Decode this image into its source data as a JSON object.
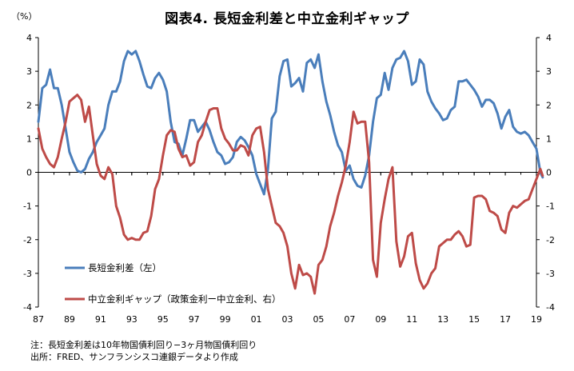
{
  "title": "図表4.  長短金利差と中立金利ギャップ",
  "unit_label": "（%）",
  "notes": [
    "注：長短金利差は10年物国債利回り−3ヶ月物国債利回り",
    "出所：FRED、サンフランシスコ連銀データより作成"
  ],
  "colors": {
    "series1": "#4a7ebb",
    "series2": "#be4b48",
    "axis": "#000000",
    "zero": "#000000"
  },
  "chart_data": {
    "type": "line",
    "title": "図表4.  長短金利差と中立金利ギャップ",
    "xlabel": "",
    "ylabel": "（%）",
    "xlim": [
      1987.0,
      2019.0
    ],
    "ylim": [
      -4,
      4
    ],
    "y_ticks": [
      4,
      3,
      2,
      1,
      0,
      -1,
      -2,
      -3,
      -4
    ],
    "y_ticks_right": [
      4,
      3,
      2,
      1,
      0,
      -1,
      -2,
      -3,
      -4
    ],
    "x_ticks": [
      {
        "x": 1987,
        "label": "87"
      },
      {
        "x": 1989,
        "label": "89"
      },
      {
        "x": 1991,
        "label": "91"
      },
      {
        "x": 1993,
        "label": "93"
      },
      {
        "x": 1995,
        "label": "95"
      },
      {
        "x": 1997,
        "label": "97"
      },
      {
        "x": 1999,
        "label": "99"
      },
      {
        "x": 2001,
        "label": "01"
      },
      {
        "x": 2003,
        "label": "03"
      },
      {
        "x": 2005,
        "label": "05"
      },
      {
        "x": 2007,
        "label": "07"
      },
      {
        "x": 2009,
        "label": "09"
      },
      {
        "x": 2011,
        "label": "11"
      },
      {
        "x": 2013,
        "label": "13"
      },
      {
        "x": 2015,
        "label": "15"
      },
      {
        "x": 2017,
        "label": "17"
      },
      {
        "x": 2019,
        "label": "19"
      }
    ],
    "legend_position": "bottom-left",
    "series": [
      {
        "name": "長短金利差（左）",
        "color": "#4a7ebb",
        "points": [
          [
            1987.0,
            1.5
          ],
          [
            1987.25,
            2.5
          ],
          [
            1987.5,
            2.6
          ],
          [
            1987.75,
            3.05
          ],
          [
            1988.0,
            2.5
          ],
          [
            1988.25,
            2.5
          ],
          [
            1988.5,
            2.0
          ],
          [
            1988.75,
            1.3
          ],
          [
            1989.0,
            0.6
          ],
          [
            1989.25,
            0.3
          ],
          [
            1989.5,
            0.05
          ],
          [
            1989.75,
            0.0
          ],
          [
            1990.0,
            0.1
          ],
          [
            1990.25,
            0.4
          ],
          [
            1990.5,
            0.6
          ],
          [
            1990.75,
            0.9
          ],
          [
            1991.0,
            1.1
          ],
          [
            1991.25,
            1.3
          ],
          [
            1991.5,
            2.0
          ],
          [
            1991.75,
            2.4
          ],
          [
            1992.0,
            2.4
          ],
          [
            1992.25,
            2.7
          ],
          [
            1992.5,
            3.3
          ],
          [
            1992.75,
            3.6
          ],
          [
            1993.0,
            3.5
          ],
          [
            1993.25,
            3.6
          ],
          [
            1993.5,
            3.3
          ],
          [
            1993.75,
            2.9
          ],
          [
            1994.0,
            2.55
          ],
          [
            1994.25,
            2.5
          ],
          [
            1994.5,
            2.8
          ],
          [
            1994.75,
            2.95
          ],
          [
            1995.0,
            2.75
          ],
          [
            1995.25,
            2.4
          ],
          [
            1995.5,
            1.5
          ],
          [
            1995.75,
            0.9
          ],
          [
            1996.0,
            0.85
          ],
          [
            1996.25,
            0.5
          ],
          [
            1996.5,
            1.0
          ],
          [
            1996.75,
            1.55
          ],
          [
            1997.0,
            1.55
          ],
          [
            1997.25,
            1.2
          ],
          [
            1997.5,
            1.35
          ],
          [
            1997.75,
            1.5
          ],
          [
            1998.0,
            1.25
          ],
          [
            1998.25,
            0.9
          ],
          [
            1998.5,
            0.6
          ],
          [
            1998.75,
            0.5
          ],
          [
            1999.0,
            0.25
          ],
          [
            1999.25,
            0.3
          ],
          [
            1999.5,
            0.45
          ],
          [
            1999.75,
            0.9
          ],
          [
            2000.0,
            1.05
          ],
          [
            2000.25,
            0.95
          ],
          [
            2000.5,
            0.75
          ],
          [
            2000.75,
            0.5
          ],
          [
            2001.0,
            -0.05
          ],
          [
            2001.25,
            -0.35
          ],
          [
            2001.5,
            -0.65
          ],
          [
            2001.75,
            0.1
          ],
          [
            2002.0,
            1.6
          ],
          [
            2002.25,
            1.8
          ],
          [
            2002.5,
            2.85
          ],
          [
            2002.75,
            3.3
          ],
          [
            2003.0,
            3.35
          ],
          [
            2003.25,
            2.55
          ],
          [
            2003.5,
            2.65
          ],
          [
            2003.75,
            2.8
          ],
          [
            2004.0,
            2.4
          ],
          [
            2004.25,
            3.25
          ],
          [
            2004.5,
            3.35
          ],
          [
            2004.75,
            3.1
          ],
          [
            2005.0,
            3.5
          ],
          [
            2005.25,
            2.7
          ],
          [
            2005.5,
            2.1
          ],
          [
            2005.75,
            1.7
          ],
          [
            2006.0,
            1.2
          ],
          [
            2006.25,
            0.8
          ],
          [
            2006.5,
            0.6
          ],
          [
            2006.75,
            0.05
          ],
          [
            2007.0,
            0.2
          ],
          [
            2007.25,
            -0.2
          ],
          [
            2007.5,
            -0.4
          ],
          [
            2007.75,
            -0.45
          ],
          [
            2008.0,
            -0.1
          ],
          [
            2008.25,
            0.5
          ],
          [
            2008.5,
            1.5
          ],
          [
            2008.75,
            2.2
          ],
          [
            2009.0,
            2.3
          ],
          [
            2009.25,
            2.95
          ],
          [
            2009.5,
            2.45
          ],
          [
            2009.75,
            3.1
          ],
          [
            2010.0,
            3.35
          ],
          [
            2010.25,
            3.4
          ],
          [
            2010.5,
            3.6
          ],
          [
            2010.75,
            3.3
          ],
          [
            2011.0,
            2.6
          ],
          [
            2011.25,
            2.7
          ],
          [
            2011.5,
            3.35
          ],
          [
            2011.75,
            3.2
          ],
          [
            2012.0,
            2.4
          ],
          [
            2012.25,
            2.1
          ],
          [
            2012.5,
            1.9
          ],
          [
            2012.75,
            1.75
          ],
          [
            2013.0,
            1.55
          ],
          [
            2013.25,
            1.6
          ],
          [
            2013.5,
            1.85
          ],
          [
            2013.75,
            1.95
          ],
          [
            2014.0,
            2.7
          ],
          [
            2014.25,
            2.7
          ],
          [
            2014.5,
            2.75
          ],
          [
            2014.75,
            2.6
          ],
          [
            2015.0,
            2.45
          ],
          [
            2015.25,
            2.25
          ],
          [
            2015.5,
            1.95
          ],
          [
            2015.75,
            2.15
          ],
          [
            2016.0,
            2.15
          ],
          [
            2016.25,
            2.05
          ],
          [
            2016.5,
            1.75
          ],
          [
            2016.75,
            1.3
          ],
          [
            2017.0,
            1.65
          ],
          [
            2017.25,
            1.85
          ],
          [
            2017.5,
            1.35
          ],
          [
            2017.75,
            1.2
          ],
          [
            2018.0,
            1.15
          ],
          [
            2018.25,
            1.2
          ],
          [
            2018.5,
            1.1
          ],
          [
            2018.75,
            0.9
          ],
          [
            2019.0,
            0.7
          ],
          [
            2019.25,
            0.0
          ],
          [
            2019.4,
            -0.15
          ]
        ]
      },
      {
        "name": "中立金利ギャップ（政策金利ー中立金利、右）",
        "color": "#be4b48",
        "points": [
          [
            1987.0,
            1.3
          ],
          [
            1987.25,
            0.7
          ],
          [
            1987.5,
            0.45
          ],
          [
            1987.75,
            0.25
          ],
          [
            1988.0,
            0.15
          ],
          [
            1988.25,
            0.45
          ],
          [
            1988.5,
            1.0
          ],
          [
            1988.75,
            1.5
          ],
          [
            1989.0,
            2.1
          ],
          [
            1989.25,
            2.2
          ],
          [
            1989.5,
            2.3
          ],
          [
            1989.75,
            2.15
          ],
          [
            1990.0,
            1.5
          ],
          [
            1990.25,
            1.95
          ],
          [
            1990.5,
            1.1
          ],
          [
            1990.75,
            0.25
          ],
          [
            1991.0,
            -0.1
          ],
          [
            1991.25,
            -0.2
          ],
          [
            1991.5,
            0.15
          ],
          [
            1991.75,
            -0.05
          ],
          [
            1992.0,
            -1.0
          ],
          [
            1992.25,
            -1.35
          ],
          [
            1992.5,
            -1.85
          ],
          [
            1992.75,
            -2.0
          ],
          [
            1993.0,
            -1.95
          ],
          [
            1993.25,
            -2.0
          ],
          [
            1993.5,
            -2.0
          ],
          [
            1993.75,
            -1.8
          ],
          [
            1994.0,
            -1.75
          ],
          [
            1994.25,
            -1.3
          ],
          [
            1994.5,
            -0.5
          ],
          [
            1994.75,
            -0.2
          ],
          [
            1995.0,
            0.5
          ],
          [
            1995.25,
            1.1
          ],
          [
            1995.5,
            1.25
          ],
          [
            1995.75,
            1.2
          ],
          [
            1996.0,
            0.7
          ],
          [
            1996.25,
            0.45
          ],
          [
            1996.5,
            0.5
          ],
          [
            1996.75,
            0.2
          ],
          [
            1997.0,
            0.3
          ],
          [
            1997.25,
            0.9
          ],
          [
            1997.5,
            1.1
          ],
          [
            1997.75,
            1.5
          ],
          [
            1998.0,
            1.85
          ],
          [
            1998.25,
            1.9
          ],
          [
            1998.5,
            1.9
          ],
          [
            1998.75,
            1.3
          ],
          [
            1999.0,
            1.0
          ],
          [
            1999.25,
            0.85
          ],
          [
            1999.5,
            0.65
          ],
          [
            1999.75,
            0.65
          ],
          [
            2000.0,
            0.8
          ],
          [
            2000.25,
            0.75
          ],
          [
            2000.5,
            0.5
          ],
          [
            2000.75,
            1.1
          ],
          [
            2001.0,
            1.3
          ],
          [
            2001.25,
            1.35
          ],
          [
            2001.5,
            0.6
          ],
          [
            2001.75,
            -0.5
          ],
          [
            2002.0,
            -1.0
          ],
          [
            2002.25,
            -1.5
          ],
          [
            2002.5,
            -1.6
          ],
          [
            2002.75,
            -1.8
          ],
          [
            2003.0,
            -2.2
          ],
          [
            2003.25,
            -3.0
          ],
          [
            2003.5,
            -3.45
          ],
          [
            2003.75,
            -2.75
          ],
          [
            2004.0,
            -3.05
          ],
          [
            2004.25,
            -3.0
          ],
          [
            2004.5,
            -3.1
          ],
          [
            2004.75,
            -3.6
          ],
          [
            2005.0,
            -2.75
          ],
          [
            2005.25,
            -2.6
          ],
          [
            2005.5,
            -2.2
          ],
          [
            2005.75,
            -1.6
          ],
          [
            2006.0,
            -1.2
          ],
          [
            2006.25,
            -0.7
          ],
          [
            2006.5,
            -0.3
          ],
          [
            2006.75,
            0.2
          ],
          [
            2007.0,
            0.9
          ],
          [
            2007.25,
            1.8
          ],
          [
            2007.5,
            1.45
          ],
          [
            2007.75,
            1.5
          ],
          [
            2008.0,
            1.5
          ],
          [
            2008.25,
            0.3
          ],
          [
            2008.5,
            -2.6
          ],
          [
            2008.75,
            -3.1
          ],
          [
            2009.0,
            -1.5
          ],
          [
            2009.25,
            -0.8
          ],
          [
            2009.5,
            -0.2
          ],
          [
            2009.75,
            0.15
          ],
          [
            2010.0,
            -2.05
          ],
          [
            2010.25,
            -2.8
          ],
          [
            2010.5,
            -2.5
          ],
          [
            2010.75,
            -1.9
          ],
          [
            2011.0,
            -1.8
          ],
          [
            2011.25,
            -2.7
          ],
          [
            2011.5,
            -3.2
          ],
          [
            2011.75,
            -3.45
          ],
          [
            2012.0,
            -3.3
          ],
          [
            2012.25,
            -3.0
          ],
          [
            2012.5,
            -2.85
          ],
          [
            2012.75,
            -2.2
          ],
          [
            2013.0,
            -2.1
          ],
          [
            2013.25,
            -2.0
          ],
          [
            2013.5,
            -2.0
          ],
          [
            2013.75,
            -1.85
          ],
          [
            2014.0,
            -1.75
          ],
          [
            2014.25,
            -1.9
          ],
          [
            2014.5,
            -2.2
          ],
          [
            2014.75,
            -2.15
          ],
          [
            2015.0,
            -0.75
          ],
          [
            2015.25,
            -0.7
          ],
          [
            2015.5,
            -0.7
          ],
          [
            2015.75,
            -0.8
          ],
          [
            2016.0,
            -1.15
          ],
          [
            2016.25,
            -1.2
          ],
          [
            2016.5,
            -1.3
          ],
          [
            2016.75,
            -1.7
          ],
          [
            2017.0,
            -1.8
          ],
          [
            2017.25,
            -1.2
          ],
          [
            2017.5,
            -1.0
          ],
          [
            2017.75,
            -1.05
          ],
          [
            2018.0,
            -0.95
          ],
          [
            2018.25,
            -0.85
          ],
          [
            2018.5,
            -0.8
          ],
          [
            2018.75,
            -0.5
          ],
          [
            2019.0,
            -0.2
          ],
          [
            2019.25,
            0.1
          ],
          [
            2019.4,
            -0.1
          ]
        ]
      }
    ]
  }
}
